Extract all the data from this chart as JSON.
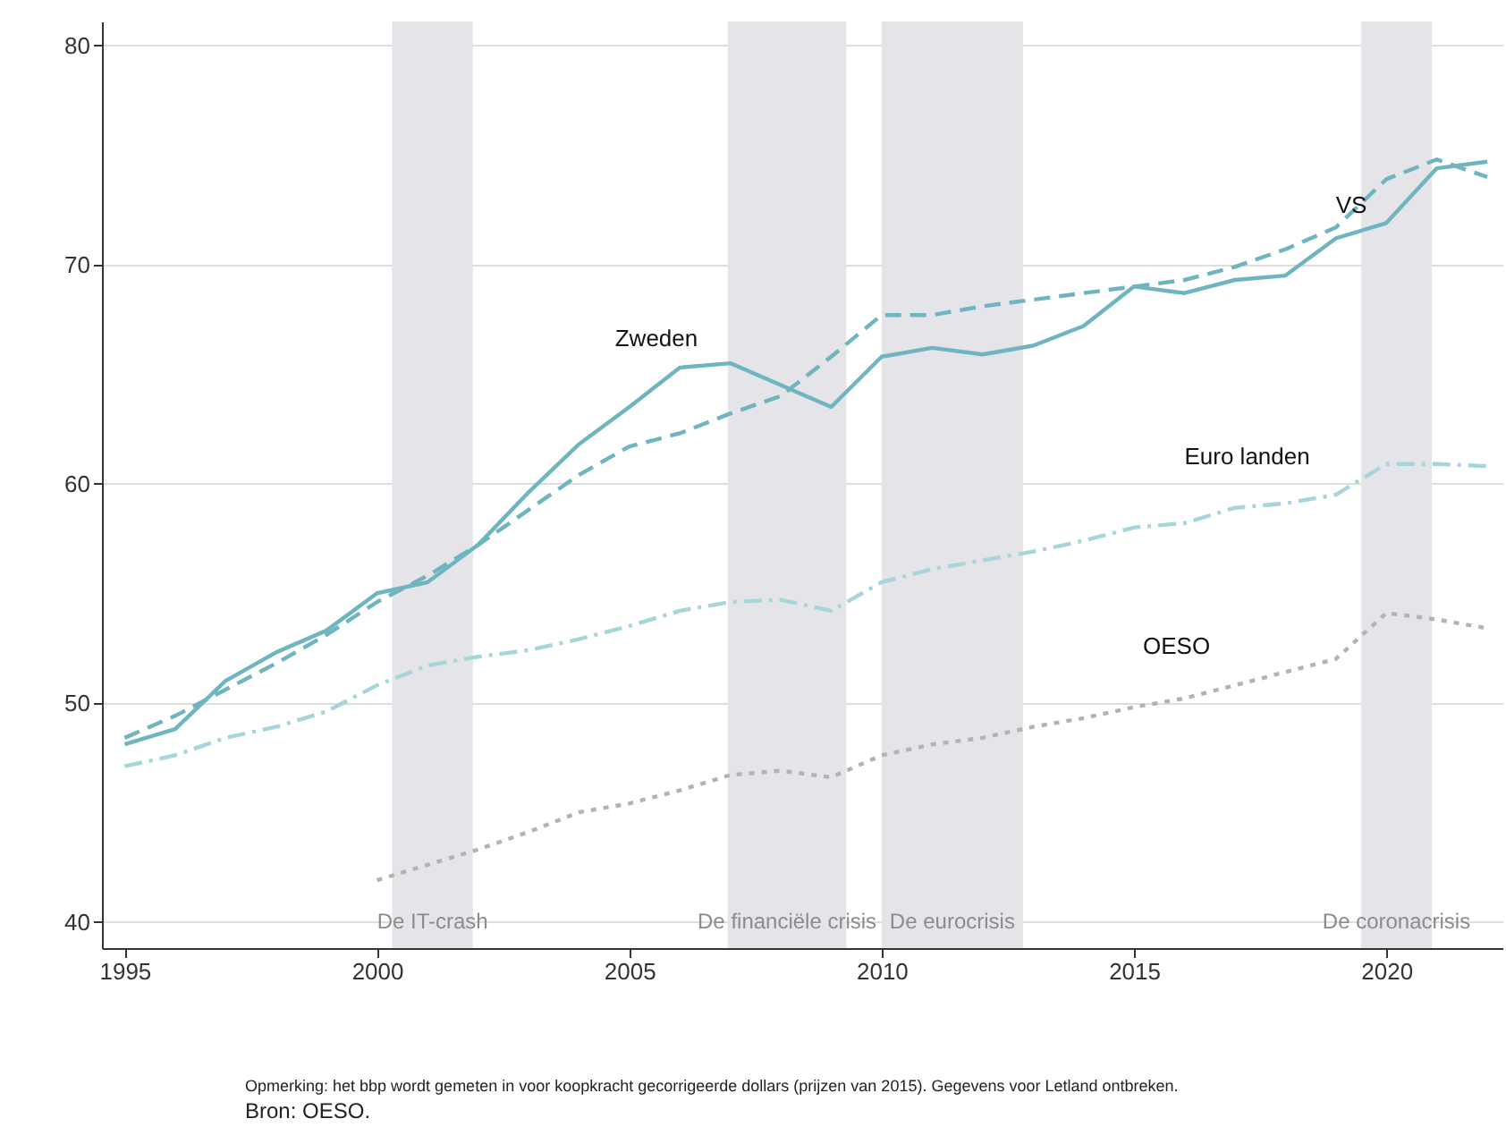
{
  "chart_data": {
    "type": "line",
    "x": [
      1995,
      1996,
      1997,
      1998,
      1999,
      2000,
      2001,
      2002,
      2003,
      2004,
      2005,
      2006,
      2007,
      2008,
      2009,
      2010,
      2011,
      2012,
      2013,
      2014,
      2015,
      2016,
      2017,
      2018,
      2019,
      2020,
      2021,
      2022
    ],
    "series": [
      {
        "name": "Zweden",
        "color": "#6fb5bf",
        "line_style": "solid",
        "values": [
          48.1,
          48.8,
          51.0,
          52.3,
          53.3,
          55.0,
          55.5,
          57.2,
          59.6,
          61.8,
          63.5,
          65.3,
          65.5,
          64.5,
          63.5,
          65.8,
          66.2,
          65.9,
          66.3,
          67.2,
          69.0,
          68.7,
          69.3,
          69.5,
          71.2,
          71.9,
          74.4,
          74.7
        ]
      },
      {
        "name": "VS",
        "color": "#6fb5bf",
        "line_style": "dashed",
        "values": [
          48.4,
          49.4,
          50.6,
          51.8,
          53.1,
          54.6,
          55.8,
          57.2,
          58.8,
          60.4,
          61.7,
          62.3,
          63.2,
          64.0,
          65.8,
          67.7,
          67.7,
          68.1,
          68.4,
          68.7,
          69.0,
          69.3,
          69.9,
          70.7,
          71.7,
          73.9,
          74.8,
          74.0
        ]
      },
      {
        "name": "Euro landen",
        "color": "#a8d5db",
        "line_style": "dashdot",
        "values": [
          47.1,
          47.6,
          48.4,
          48.9,
          49.6,
          50.8,
          51.7,
          52.1,
          52.4,
          52.9,
          53.5,
          54.2,
          54.6,
          54.7,
          54.2,
          55.5,
          56.1,
          56.5,
          56.9,
          57.4,
          58.0,
          58.2,
          58.9,
          59.1,
          59.5,
          60.9,
          60.9,
          60.8
        ]
      },
      {
        "name": "OESO",
        "color": "#b3b3b3",
        "line_style": "dotted",
        "values": [
          null,
          null,
          null,
          null,
          null,
          41.9,
          42.6,
          43.3,
          44.1,
          45.0,
          45.4,
          46.0,
          46.7,
          46.9,
          46.6,
          47.6,
          48.1,
          48.4,
          48.9,
          49.3,
          49.8,
          50.2,
          50.8,
          51.4,
          52.0,
          54.1,
          53.8,
          53.4
        ]
      }
    ],
    "xlim": [
      1994.55,
      2022.3
    ],
    "xticks": [
      1995,
      2000,
      2005,
      2010,
      2015,
      2020
    ],
    "ylim": [
      38.8,
      81.1
    ],
    "yticks": [
      40,
      50,
      60,
      70,
      80
    ],
    "grid": "y",
    "bands": [
      {
        "axis": "x",
        "from": 2000.3,
        "to": 2001.9,
        "label": "De IT-crash",
        "color": "#e5e4e8"
      },
      {
        "axis": "x",
        "from": 2006.95,
        "to": 2009.3,
        "label": "De financiële crisis",
        "color": "#e5e4e8"
      },
      {
        "axis": "x",
        "from": 2010.0,
        "to": 2012.8,
        "label": "De eurocrisis",
        "color": "#e5e4e8"
      },
      {
        "axis": "x",
        "from": 2019.5,
        "to": 2020.9,
        "label": "De coronacrisis",
        "color": "#e5e4e8"
      }
    ],
    "annotations": [
      "Opmerking: het bbp wordt gemeten in voor koopkracht gecorrigeerde dollars (prijzen van 2015). Gegevens voor Letland ontbreken.",
      "Bron: OESO."
    ]
  }
}
